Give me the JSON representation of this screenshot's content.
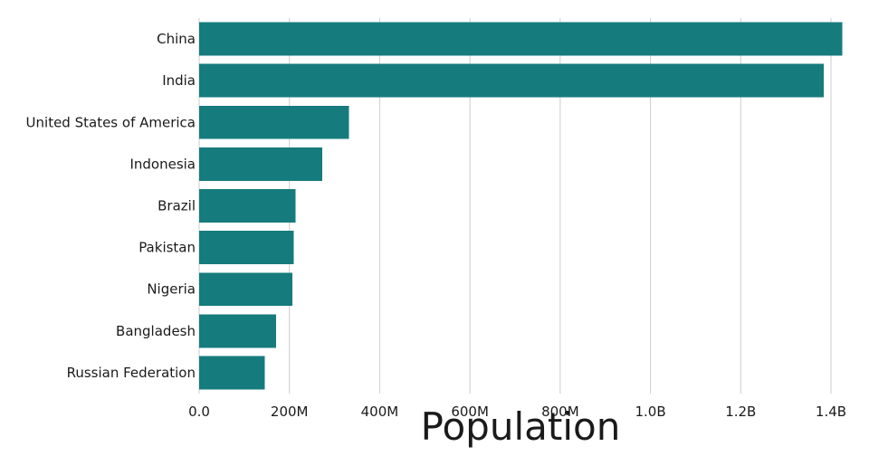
{
  "chart_data": {
    "type": "bar",
    "orientation": "horizontal",
    "title": "",
    "xlabel": "Population",
    "ylabel": "",
    "categories": [
      "China",
      "India",
      "United States of America",
      "Indonesia",
      "Brazil",
      "Pakistan",
      "Nigeria",
      "Bangladesh",
      "Russian Federation"
    ],
    "values": [
      1425000000,
      1384000000,
      332000000,
      273000000,
      214000000,
      210000000,
      207000000,
      170000000,
      145000000
    ],
    "xlim": [
      0,
      1400000000
    ],
    "xticks": [
      0,
      200000000,
      400000000,
      600000000,
      800000000,
      1000000000,
      1200000000,
      1400000000
    ],
    "xtick_labels": [
      "0.0",
      "200M",
      "400M",
      "600M",
      "800M",
      "1.0B",
      "1.2B",
      "1.4B"
    ],
    "grid": true,
    "legend": "none",
    "bar_color": "#167b7d"
  }
}
